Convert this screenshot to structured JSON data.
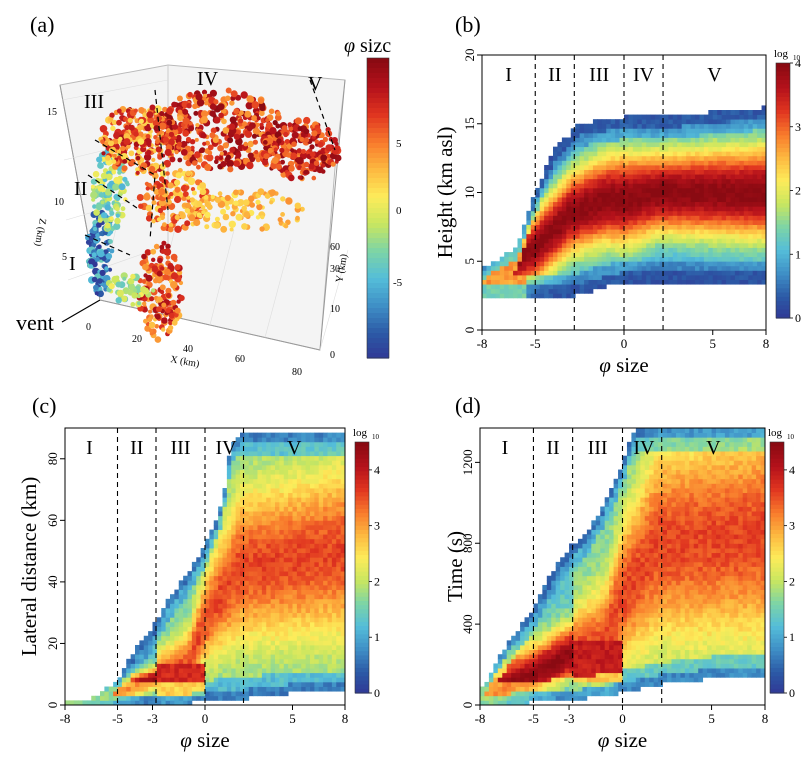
{
  "colors": {
    "scale": [
      "#313695",
      "#2c5aa6",
      "#3f8fc6",
      "#54bdd9",
      "#7dd4a6",
      "#c8e660",
      "#fdec5a",
      "#fdb840",
      "#f87a2c",
      "#e03520",
      "#b5121b",
      "#8a0a12"
    ]
  },
  "panel_a": {
    "label": "(a)",
    "title_symbol": "φ",
    "title_text": "sizc",
    "vent_label": "vent",
    "x_title": "X (km)",
    "y_title": "Y (km)",
    "z_title": "Z (km)",
    "x_ticks": [
      "0",
      "20",
      "40",
      "60",
      "80"
    ],
    "y_ticks": [
      "0",
      "10",
      "30",
      "60"
    ],
    "z_ticks": [
      "5",
      "10",
      "15"
    ],
    "colorbar_ticks": [
      "5",
      "0",
      "-5"
    ],
    "colorbar_range": [
      -8,
      8
    ],
    "regions": [
      "I",
      "II",
      "III",
      "IV",
      "V"
    ]
  },
  "chart_data": [
    {
      "type": "heatmap",
      "panel": "(b)",
      "xlabel": "size",
      "ylabel": "Height (km asl)",
      "x_symbol": "φ",
      "xlim": [
        -8,
        8
      ],
      "ylim": [
        0,
        20
      ],
      "x_ticks": [
        "-8",
        "-5",
        "0",
        "5",
        "8"
      ],
      "y_ticks": [
        "0",
        "5",
        "10",
        "15",
        "20"
      ],
      "colorbar_title": "log",
      "colorbar_sub": "10",
      "colorbar_range": [
        0,
        4
      ],
      "colorbar_ticks": [
        "0",
        "1",
        "2",
        "3",
        "4"
      ],
      "dividers": [
        -5,
        -2.8,
        0,
        2.2
      ],
      "regions": [
        "I",
        "II",
        "III",
        "IV",
        "V"
      ],
      "region_centers": [
        -6.5,
        -3.9,
        -1.4,
        1.1,
        5.1
      ]
    },
    {
      "type": "heatmap",
      "panel": "(c)",
      "xlabel": "size",
      "ylabel": "Lateral distance (km)",
      "x_symbol": "φ",
      "xlim": [
        -8,
        8
      ],
      "ylim": [
        0,
        90
      ],
      "x_ticks": [
        "-8",
        "-5",
        "-3",
        "0",
        "5",
        "8"
      ],
      "y_ticks": [
        "0",
        "20",
        "40",
        "60",
        "80"
      ],
      "colorbar_title": "log",
      "colorbar_sub": "10",
      "colorbar_range": [
        0,
        4.5
      ],
      "colorbar_ticks": [
        "0",
        "1",
        "2",
        "3",
        "4"
      ],
      "dividers": [
        -5,
        -2.8,
        0,
        2.2
      ],
      "regions": [
        "I",
        "II",
        "III",
        "IV",
        "V"
      ],
      "region_centers": [
        -6.6,
        -3.9,
        -1.4,
        1.2,
        5.1
      ]
    },
    {
      "type": "heatmap",
      "panel": "(d)",
      "xlabel": "size",
      "ylabel": "Time (s)",
      "x_symbol": "φ",
      "xlim": [
        -8,
        8
      ],
      "ylim": [
        0,
        1370
      ],
      "x_ticks": [
        "-8",
        "-5",
        "-3",
        "0",
        "5",
        "8"
      ],
      "y_ticks": [
        "0",
        "400",
        "800",
        "1200"
      ],
      "colorbar_title": "log",
      "colorbar_sub": "10",
      "colorbar_range": [
        0,
        4.5
      ],
      "colorbar_ticks": [
        "0",
        "1",
        "2",
        "3",
        "4"
      ],
      "dividers": [
        -5,
        -2.8,
        0,
        2.2
      ],
      "regions": [
        "I",
        "II",
        "III",
        "IV",
        "V"
      ],
      "region_centers": [
        -6.6,
        -3.9,
        -1.4,
        1.2,
        5.1
      ]
    }
  ]
}
